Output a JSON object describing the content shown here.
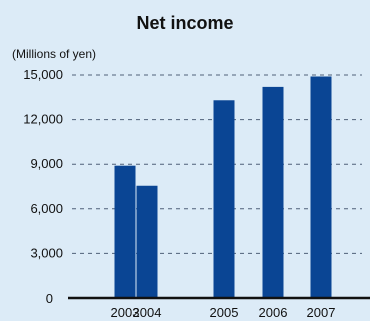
{
  "chart_data": {
    "type": "bar",
    "title": "Net income",
    "unit_label": "(Millions of yen)",
    "categories": [
      "2003",
      "2004",
      "2005",
      "2006",
      "2007"
    ],
    "values": [
      8900,
      7550,
      13300,
      14200,
      14900
    ],
    "y_ticks": [
      "0",
      "3,000",
      "6,000",
      "9,000",
      "12,000",
      "15,000"
    ],
    "y_tick_values": [
      0,
      3000,
      6000,
      9000,
      12000,
      15000
    ],
    "ylim": [
      0,
      15000
    ],
    "grid": true,
    "colors": {
      "background": "#dcebf7",
      "bar": "#0a4594"
    }
  }
}
